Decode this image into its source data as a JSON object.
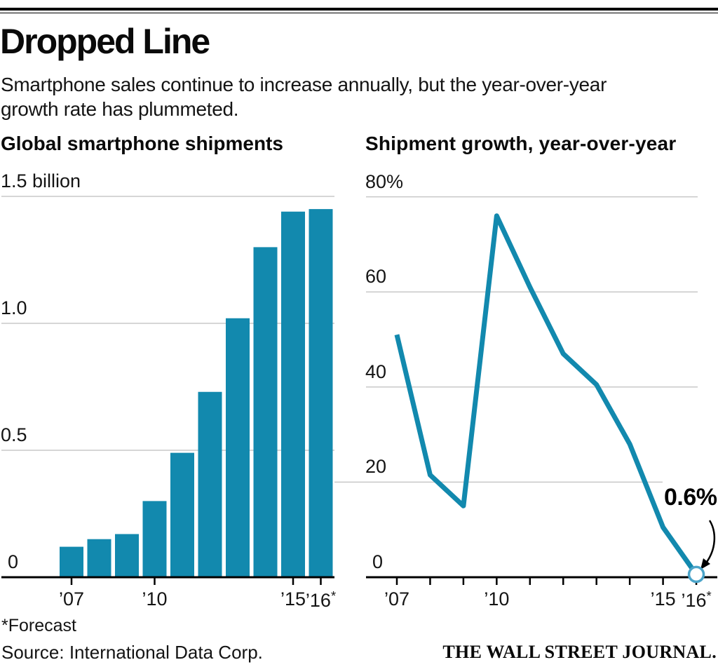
{
  "header": {
    "title": "Dropped Line",
    "subtitle": "Smartphone sales continue to increase annually, but the year-over-year growth rate has plummeted."
  },
  "colors": {
    "accent": "#1289ae",
    "endpoint_stroke": "#4ba4c9",
    "grid": "#c8c8c8",
    "axis": "#000000"
  },
  "chart_data": [
    {
      "type": "bar",
      "title": "Global smartphone shipments",
      "unit": "billions of units",
      "categories": [
        2007,
        2008,
        2009,
        2010,
        2011,
        2012,
        2013,
        2014,
        2015,
        2016
      ],
      "values": [
        0.12,
        0.15,
        0.17,
        0.3,
        0.49,
        0.73,
        1.02,
        1.3,
        1.44,
        1.45
      ],
      "ylim": [
        0,
        1.5
      ],
      "grid": true,
      "yticks": [
        {
          "label": "1.5 billion",
          "value": 1.5
        },
        {
          "label": "1.0",
          "value": 1.0
        },
        {
          "label": "0.5",
          "value": 0.5
        },
        {
          "label": "0",
          "value": 0
        }
      ],
      "xticks": [
        {
          "label": "’07",
          "year": 2007
        },
        {
          "label": "’10",
          "year": 2010
        },
        {
          "label": "’15",
          "year": 2015
        },
        {
          "label": "’16",
          "suffix": "*",
          "year": 2016
        }
      ]
    },
    {
      "type": "line",
      "title": "Shipment growth, year-over-year",
      "unit": "%",
      "categories": [
        2007,
        2008,
        2009,
        2010,
        2011,
        2012,
        2013,
        2014,
        2015,
        2016
      ],
      "values": [
        51,
        21.5,
        15,
        76,
        61,
        47,
        40.5,
        28,
        10.5,
        0.6
      ],
      "ylim": [
        0,
        80
      ],
      "grid": true,
      "yticks": [
        {
          "label": "80%",
          "value": 80
        },
        {
          "label": "60",
          "value": 60
        },
        {
          "label": "40",
          "value": 40
        },
        {
          "label": "20",
          "value": 20
        },
        {
          "label": "0",
          "value": 0
        }
      ],
      "xticks": [
        {
          "label": "’07",
          "year": 2007
        },
        {
          "label": "’10",
          "year": 2010
        },
        {
          "label": "’15",
          "year": 2015
        },
        {
          "label": "’16",
          "suffix": "*",
          "year": 2016
        }
      ],
      "annotation": {
        "label": "0.6%",
        "target_year": 2016,
        "target_value": 0.6
      }
    }
  ],
  "footer": {
    "footnote": "*Forecast",
    "source": "Source: International Data Corp.",
    "brand": "THE WALL STREET JOURNAL."
  }
}
